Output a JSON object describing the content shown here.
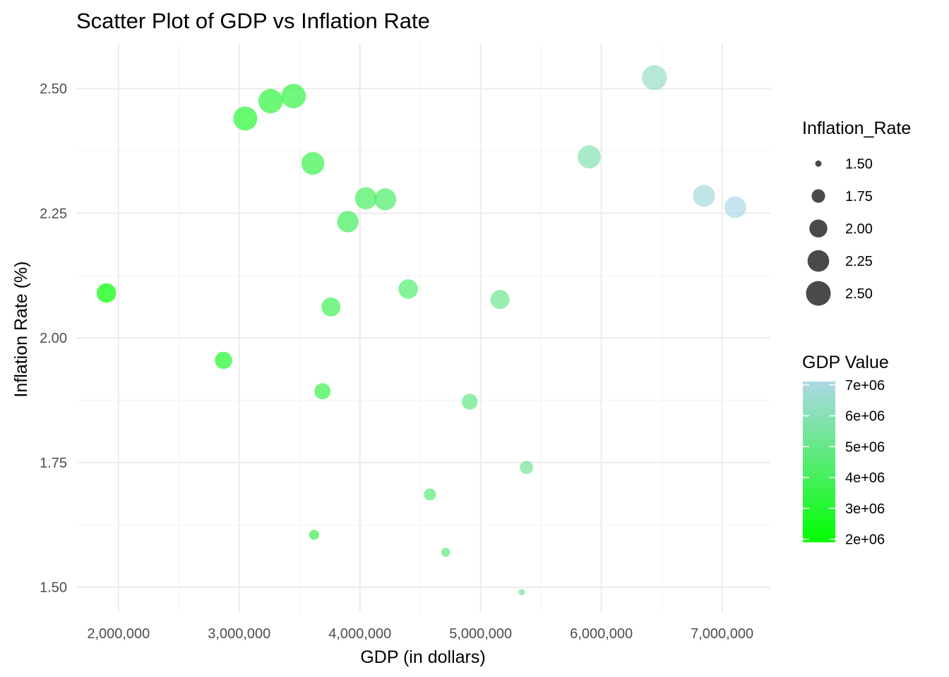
{
  "chart_data": {
    "type": "scatter",
    "title": "Scatter Plot of GDP vs Inflation Rate",
    "xlabel": "GDP (in dollars)",
    "ylabel": "Inflation Rate (%)",
    "xlim": [
      1650000,
      7400000
    ],
    "ylim": [
      1.45,
      2.59
    ],
    "x_ticks": [
      2000000,
      3000000,
      4000000,
      5000000,
      6000000,
      7000000
    ],
    "x_tick_labels": [
      "2,000,000",
      "3,000,000",
      "4,000,000",
      "5,000,000",
      "6,000,000",
      "7,000,000"
    ],
    "y_ticks": [
      1.5,
      1.75,
      2.0,
      2.25,
      2.5
    ],
    "y_tick_labels": [
      "1.50",
      "1.75",
      "2.00",
      "2.25",
      "2.50"
    ],
    "grid": true,
    "point_opacity": 0.7,
    "points": [
      {
        "x": 1900000,
        "y": 2.09
      },
      {
        "x": 2870000,
        "y": 1.955
      },
      {
        "x": 3050000,
        "y": 2.44
      },
      {
        "x": 3260000,
        "y": 2.475
      },
      {
        "x": 3450000,
        "y": 2.485
      },
      {
        "x": 3620000,
        "y": 1.605
      },
      {
        "x": 3610000,
        "y": 2.35
      },
      {
        "x": 3690000,
        "y": 1.893
      },
      {
        "x": 3760000,
        "y": 2.062
      },
      {
        "x": 3900000,
        "y": 2.233
      },
      {
        "x": 4050000,
        "y": 2.28
      },
      {
        "x": 4210000,
        "y": 2.278
      },
      {
        "x": 4400000,
        "y": 2.098
      },
      {
        "x": 4580000,
        "y": 1.686
      },
      {
        "x": 4710000,
        "y": 1.57
      },
      {
        "x": 4910000,
        "y": 1.872
      },
      {
        "x": 5160000,
        "y": 2.077
      },
      {
        "x": 5340000,
        "y": 1.49
      },
      {
        "x": 5380000,
        "y": 1.74
      },
      {
        "x": 5900000,
        "y": 2.363
      },
      {
        "x": 6440000,
        "y": 2.522
      },
      {
        "x": 6850000,
        "y": 2.285
      },
      {
        "x": 7110000,
        "y": 2.262
      }
    ],
    "size_legend": {
      "title": "Inflation_Rate",
      "values": [
        1.5,
        1.75,
        2.0,
        2.25,
        2.5
      ],
      "labels": [
        "1.50",
        "1.75",
        "2.00",
        "2.25",
        "2.50"
      ],
      "color": "#4a4a4a"
    },
    "color_legend": {
      "title": "GDP Value",
      "low_color": "#00ff00",
      "high_color": "#add8e6",
      "range": [
        1900000,
        7110000
      ],
      "values": [
        2000000,
        3000000,
        4000000,
        5000000,
        6000000,
        7000000
      ],
      "labels": [
        "2e+06",
        "3e+06",
        "4e+06",
        "5e+06",
        "6e+06",
        "7e+06"
      ]
    }
  }
}
